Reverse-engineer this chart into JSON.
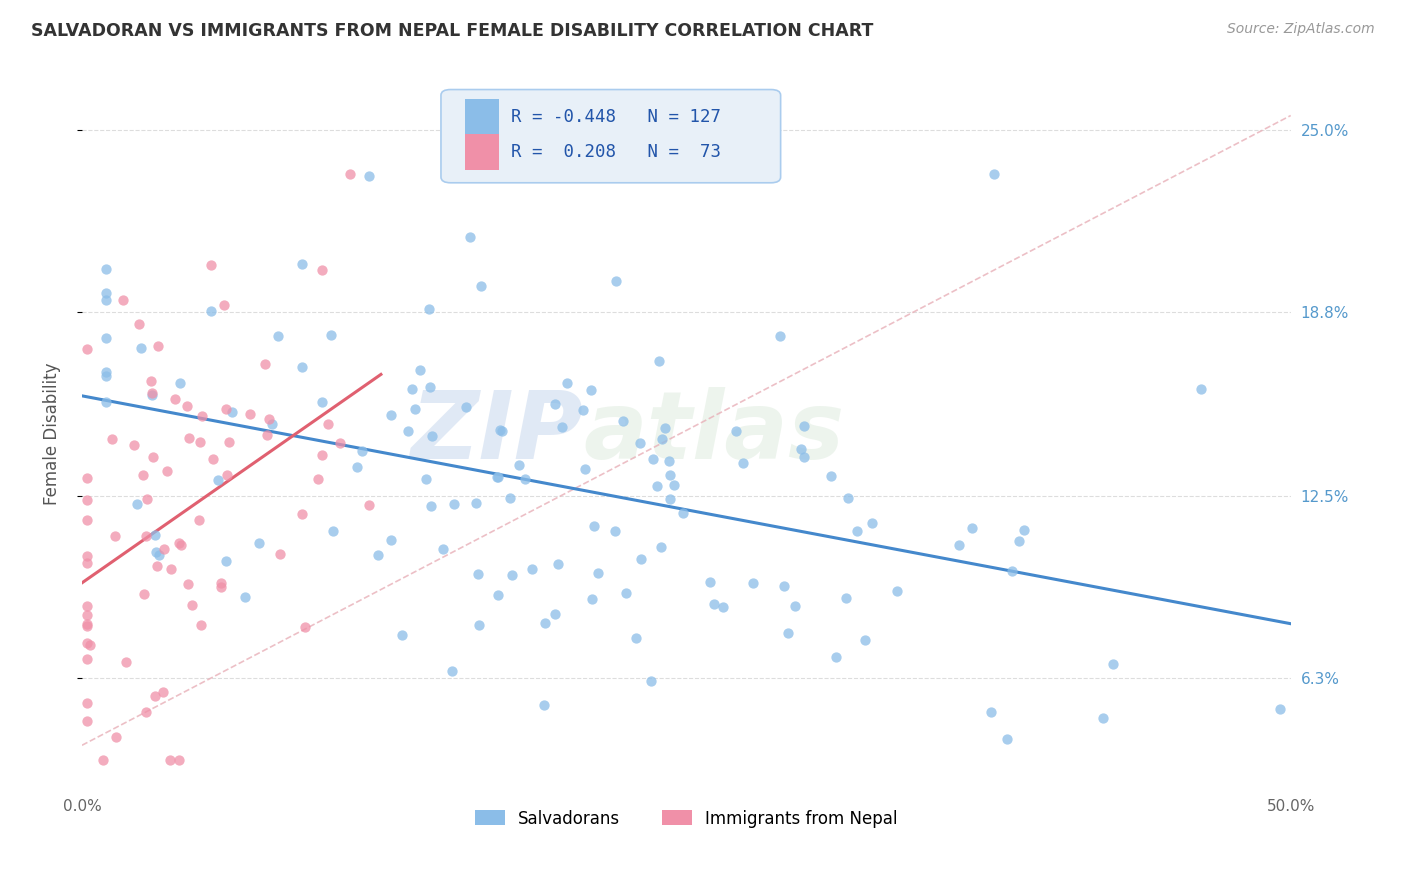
{
  "title": "SALVADORAN VS IMMIGRANTS FROM NEPAL FEMALE DISABILITY CORRELATION CHART",
  "source_text": "Source: ZipAtlas.com",
  "ylabel": "Female Disability",
  "legend_label_1": "Salvadorans",
  "legend_label_2": "Immigrants from Nepal",
  "R1": -0.448,
  "N1": 127,
  "R2": 0.208,
  "N2": 73,
  "color1": "#8bbde8",
  "color2": "#f090a8",
  "trendline1_color": "#4488cc",
  "trendline2_color": "#e06070",
  "refline_color": "#e8b0b8",
  "watermark_zip": "ZIP",
  "watermark_atlas": "atlas",
  "xmin": 0.0,
  "xmax": 0.5,
  "ymin": 0.025,
  "ymax": 0.268,
  "yticks": [
    0.063,
    0.125,
    0.188,
    0.25
  ],
  "ytick_labels": [
    "6.3%",
    "12.5%",
    "18.8%",
    "25.0%"
  ],
  "xticks": [
    0.0,
    0.1,
    0.2,
    0.3,
    0.4,
    0.5
  ],
  "xtick_labels": [
    "0.0%",
    "",
    "",
    "",
    "",
    "50.0%"
  ],
  "background_color": "#ffffff",
  "grid_color": "#dddddd",
  "legend_box_color": "#e8f0f8",
  "legend_border_color": "#aaccee"
}
